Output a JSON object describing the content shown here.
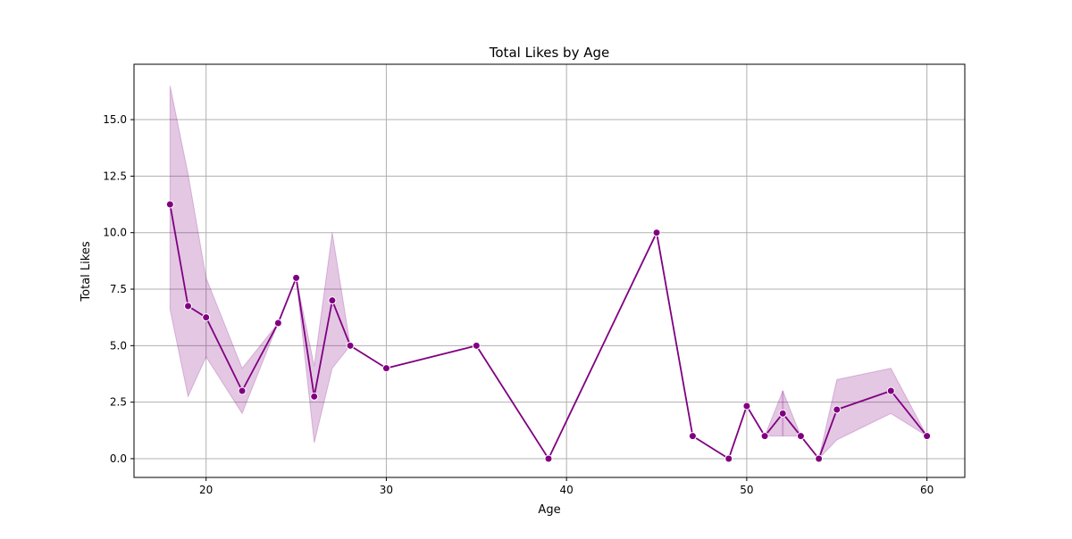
{
  "chart_data": {
    "type": "line",
    "title": "Total Likes by Age",
    "xlabel": "Age",
    "ylabel": "Total Likes",
    "xlim": [
      16,
      62.1
    ],
    "ylim": [
      -0.83,
      17.45
    ],
    "xticks": [
      20,
      30,
      40,
      50,
      60
    ],
    "xtick_labels": [
      "20",
      "30",
      "40",
      "50",
      "60"
    ],
    "yticks": [
      0,
      2.5,
      5,
      7.5,
      10,
      12.5,
      15
    ],
    "ytick_labels": [
      "0.0",
      "2.5",
      "5.0",
      "7.5",
      "10.0",
      "12.5",
      "15.0"
    ],
    "grid": true,
    "colors": {
      "line": "#800080",
      "band": "#800080"
    },
    "series": [
      {
        "marker": "circle",
        "x": [
          18,
          19,
          20,
          22,
          24,
          25,
          26,
          27,
          28,
          30,
          35,
          39,
          45,
          47,
          49,
          50,
          51,
          52,
          53,
          54,
          55,
          58,
          60
        ],
        "y": [
          11.25,
          6.75,
          6.25,
          3.0,
          6.0,
          8.0,
          2.75,
          7.0,
          5.0,
          4.0,
          5.0,
          0.0,
          10.0,
          1.0,
          0.0,
          2.33,
          1.0,
          2.0,
          1.0,
          0.0,
          2.17,
          3.0,
          1.0
        ],
        "ci_lower": [
          6.6,
          2.75,
          4.5,
          2.0,
          6.0,
          8.0,
          0.7,
          4.0,
          5.0,
          4.0,
          5.0,
          0.0,
          10.0,
          1.0,
          0.0,
          2.33,
          1.0,
          1.0,
          1.0,
          0.0,
          0.83,
          2.0,
          1.0
        ],
        "ci_upper": [
          16.5,
          12.6,
          8.0,
          4.0,
          6.0,
          8.0,
          4.1,
          10.0,
          5.0,
          4.0,
          5.0,
          0.0,
          10.0,
          1.0,
          0.0,
          2.33,
          1.0,
          3.0,
          1.0,
          0.0,
          3.5,
          4.0,
          1.0
        ]
      }
    ]
  }
}
